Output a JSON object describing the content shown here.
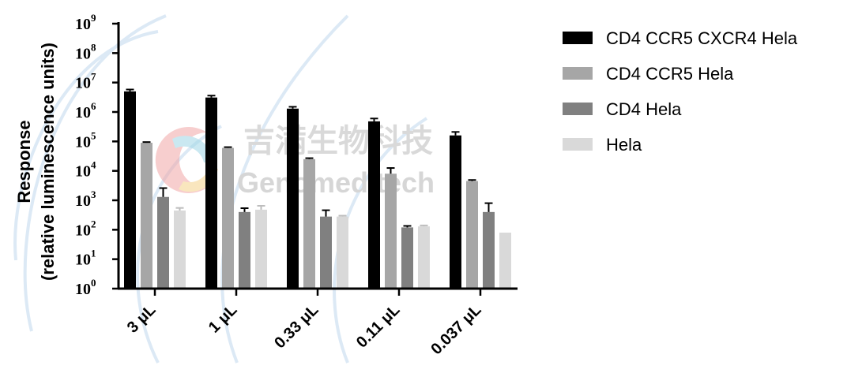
{
  "chart_data": {
    "type": "bar",
    "scale": "log10",
    "ylabel_line1": "Response",
    "ylabel_line2": "(relative luminescence units)",
    "xlabel": "",
    "ylim": [
      1,
      1000000000
    ],
    "yticks": [
      {
        "base": "10",
        "exp": "0"
      },
      {
        "base": "10",
        "exp": "1"
      },
      {
        "base": "10",
        "exp": "2"
      },
      {
        "base": "10",
        "exp": "3"
      },
      {
        "base": "10",
        "exp": "4"
      },
      {
        "base": "10",
        "exp": "5"
      },
      {
        "base": "10",
        "exp": "6"
      },
      {
        "base": "10",
        "exp": "7"
      },
      {
        "base": "10",
        "exp": "8"
      },
      {
        "base": "10",
        "exp": "9"
      }
    ],
    "categories": [
      "3 μL",
      "1 μL",
      "0.33 μL",
      "0.11 μL",
      "0.037 μL"
    ],
    "legend_position": "right",
    "series": [
      {
        "name": "CD4 CCR5 CXCR4 Hela",
        "color": "#000000",
        "values": [
          5000000,
          3100000,
          1300000,
          480000,
          160000
        ],
        "errors": [
          800000,
          500000,
          200000,
          120000,
          50000
        ]
      },
      {
        "name": "CD4 CCR5 Hela",
        "color": "#a6a6a6",
        "values": [
          90000,
          60000,
          25000,
          8000,
          4500
        ],
        "errors": [
          5000,
          4000,
          2000,
          4500,
          400
        ]
      },
      {
        "name": "CD4 Hela",
        "color": "#808080",
        "values": [
          1300,
          400,
          280,
          120,
          400
        ],
        "errors": [
          1300,
          140,
          180,
          15,
          400
        ]
      },
      {
        "name": "Hela",
        "color": "#d9d9d9",
        "values": [
          450,
          480,
          280,
          130,
          80
        ],
        "errors": [
          100,
          170,
          20,
          10,
          0
        ]
      }
    ]
  },
  "watermark": {
    "chinese": "吉满生物科技",
    "english": "Genomeditech"
  }
}
